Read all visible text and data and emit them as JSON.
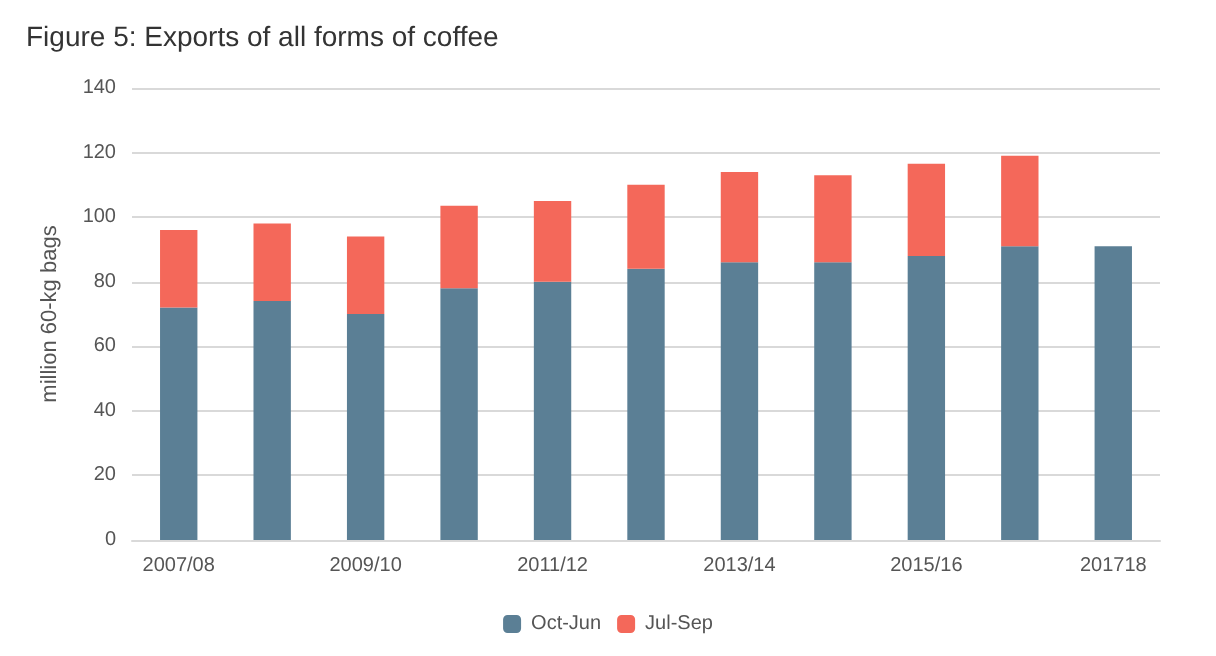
{
  "chart_data": {
    "type": "bar",
    "title": "Figure 5: Exports of all forms of coffee",
    "ylabel": "million 60-kg bags",
    "categories": [
      "2007/08",
      null,
      "2009/10",
      null,
      "2011/12",
      null,
      "2013/14",
      null,
      "2015/16",
      null,
      "201718"
    ],
    "stacked": true,
    "series": [
      {
        "name": "Oct-Jun",
        "color": "#5b7f95",
        "values": [
          72,
          74,
          70,
          78,
          80,
          84,
          86,
          86,
          88,
          91,
          91
        ]
      },
      {
        "name": "Jul-Sep",
        "color": "#f4685a",
        "values": [
          24,
          24,
          24,
          25.5,
          25,
          26,
          28,
          27,
          28.5,
          28,
          null
        ]
      }
    ],
    "ylim": [
      0,
      140
    ],
    "yticks": [
      0,
      20,
      40,
      60,
      80,
      100,
      120,
      140
    ],
    "grid": "y",
    "legend": "bottom"
  }
}
